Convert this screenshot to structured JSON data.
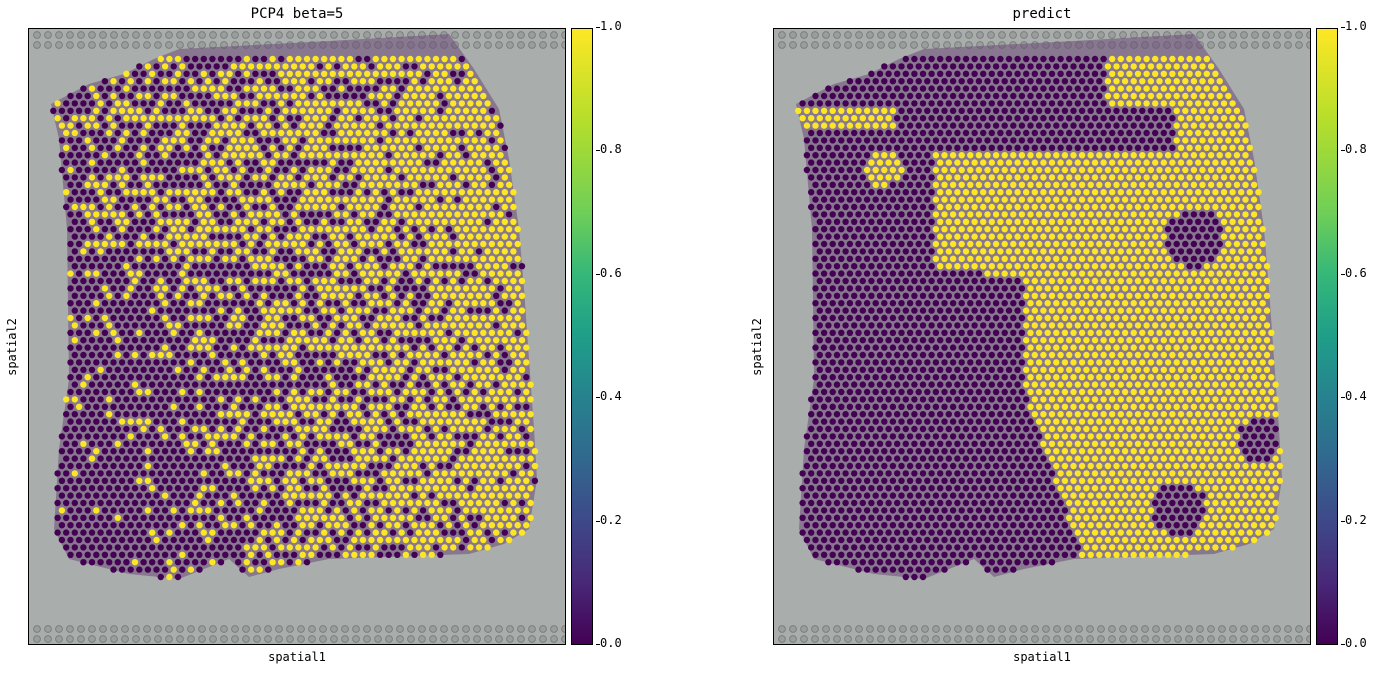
{
  "colors": {
    "low": "#440154",
    "high": "#fde725",
    "background": "#a9aeac",
    "tissue": "#6b4a78"
  },
  "colorbar": {
    "colormap": "viridis",
    "ticks": [
      "0.0",
      "0.2",
      "0.4",
      "0.6",
      "0.8",
      "1.0"
    ]
  },
  "chart_data": [
    {
      "type": "scatter",
      "title": "PCP4 beta=5",
      "xlabel": "spatial1",
      "ylabel": "spatial2",
      "colorbar_range": [
        0.0,
        1.0
      ],
      "value_set": [
        0,
        1
      ],
      "pattern": "mixed",
      "grid": false
    },
    {
      "type": "scatter",
      "title": "predict",
      "xlabel": "spatial1",
      "ylabel": "spatial2",
      "colorbar_range": [
        0.0,
        1.0
      ],
      "value_set": [
        0,
        1
      ],
      "pattern": "smooth",
      "grid": false
    }
  ]
}
